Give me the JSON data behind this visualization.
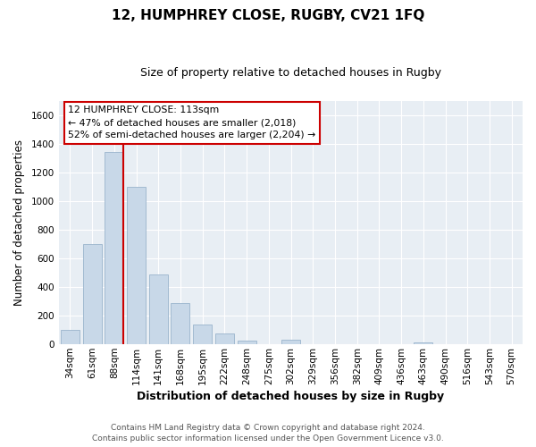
{
  "title": "12, HUMPHREY CLOSE, RUGBY, CV21 1FQ",
  "subtitle": "Size of property relative to detached houses in Rugby",
  "xlabel": "Distribution of detached houses by size in Rugby",
  "ylabel": "Number of detached properties",
  "bar_labels": [
    "34sqm",
    "61sqm",
    "88sqm",
    "114sqm",
    "141sqm",
    "168sqm",
    "195sqm",
    "222sqm",
    "248sqm",
    "275sqm",
    "302sqm",
    "329sqm",
    "356sqm",
    "382sqm",
    "409sqm",
    "436sqm",
    "463sqm",
    "490sqm",
    "516sqm",
    "543sqm",
    "570sqm"
  ],
  "bar_values": [
    100,
    700,
    1340,
    1100,
    490,
    285,
    140,
    75,
    25,
    0,
    35,
    0,
    0,
    0,
    0,
    0,
    15,
    0,
    0,
    0,
    0
  ],
  "bar_color": "#c8d8e8",
  "bar_edge_color": "#9ab4cc",
  "marker_bar_index": 2,
  "marker_line_color": "#cc0000",
  "ylim": [
    0,
    1700
  ],
  "yticks": [
    0,
    200,
    400,
    600,
    800,
    1000,
    1200,
    1400,
    1600
  ],
  "annotation_title": "12 HUMPHREY CLOSE: 113sqm",
  "annotation_line1": "← 47% of detached houses are smaller (2,018)",
  "annotation_line2": "52% of semi-detached houses are larger (2,204) →",
  "annotation_box_color": "#ffffff",
  "annotation_box_edge": "#cc0000",
  "footer_line1": "Contains HM Land Registry data © Crown copyright and database right 2024.",
  "footer_line2": "Contains public sector information licensed under the Open Government Licence v3.0.",
  "plot_bg_color": "#e8eef4",
  "fig_bg_color": "#ffffff",
  "grid_color": "#ffffff",
  "title_fontsize": 11,
  "subtitle_fontsize": 9,
  "xlabel_fontsize": 9,
  "ylabel_fontsize": 8.5,
  "tick_fontsize": 7.5,
  "footer_fontsize": 6.5
}
